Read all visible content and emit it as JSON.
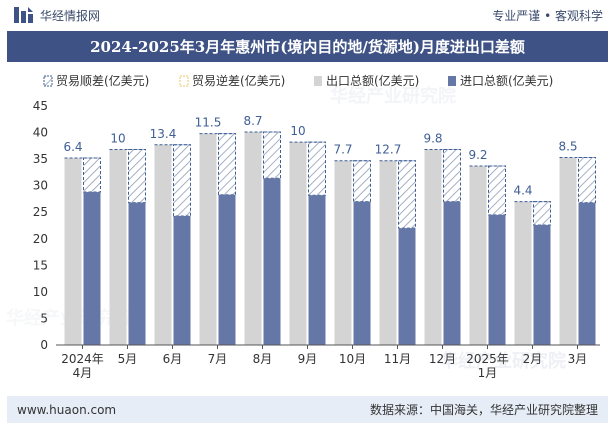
{
  "header": {
    "brand": "华经情报网",
    "slogan": "专业严谨 • 客观科学"
  },
  "chart_data": {
    "type": "bar",
    "title": "2024-2025年3月年惠州市(境内目的地/货源地)月度进出口差额",
    "categories": [
      [
        "2024年",
        "4月"
      ],
      [
        "5月"
      ],
      [
        "6月"
      ],
      [
        "7月"
      ],
      [
        "8月"
      ],
      [
        "9月"
      ],
      [
        "10月"
      ],
      [
        "11月"
      ],
      [
        "12月"
      ],
      [
        "2025年",
        "1月"
      ],
      [
        "2月"
      ],
      [
        "3月"
      ]
    ],
    "series": [
      {
        "name": "贸易顺差(亿美元)",
        "values": [
          6.4,
          10,
          13.4,
          11.5,
          8.7,
          10,
          7.7,
          12.7,
          9.8,
          9.2,
          4.4,
          8.5
        ]
      },
      {
        "name": "贸易逆差(亿美元)",
        "values": [
          0,
          0,
          0,
          0,
          0,
          0,
          0,
          0,
          0,
          0,
          0,
          0
        ]
      },
      {
        "name": "出口总额(亿美元)",
        "values": [
          35.2,
          36.8,
          37.7,
          39.8,
          40.1,
          38.2,
          34.7,
          34.7,
          36.8,
          33.7,
          27.0,
          35.3
        ]
      },
      {
        "name": "进口总额(亿美元)",
        "values": [
          28.8,
          26.8,
          24.3,
          28.3,
          31.4,
          28.2,
          27.0,
          22.0,
          27.0,
          24.5,
          22.6,
          26.8
        ]
      }
    ],
    "ylim": [
      0,
      45
    ],
    "yticks": [
      0,
      5,
      10,
      15,
      20,
      25,
      30,
      35,
      40,
      45
    ],
    "grid": false,
    "legend": "top",
    "colors": {
      "export": "#d4d4d4",
      "import": "#6577a6",
      "surplus_border": "#3f5f95",
      "hatch": "#8f9bb5",
      "deficit": "#e8c96a",
      "axis": "#555555",
      "label": "#333333"
    }
  },
  "watermark": "华经产业研究院",
  "footer": {
    "website": "www.huaon.com",
    "source": "数据来源：中国海关，华经产业研究院整理"
  }
}
